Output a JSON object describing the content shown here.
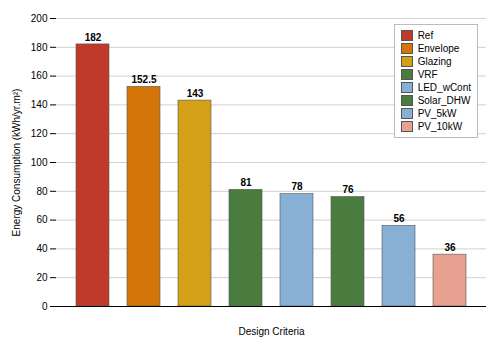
{
  "chart_data": {
    "type": "bar",
    "categories": [
      "Ref",
      "Envelope",
      "Glazing",
      "VRF",
      "LED_wCont",
      "Solar_DHW",
      "PV_5kW",
      "PV_10kW"
    ],
    "values": [
      182,
      152.5,
      143,
      81,
      78,
      76,
      56,
      36
    ],
    "colors": [
      "#c0392b",
      "#d4750a",
      "#d4a017",
      "#4a7c3f",
      "#87b0d4",
      "#4a7c3f",
      "#87b0d4",
      "#e8a090"
    ],
    "xlabel": "Design Criteria",
    "ylabel": "Energy Consumption (kWh/yr.m²)",
    "ylim": [
      0,
      200
    ],
    "yticks": [
      0,
      20,
      40,
      60,
      80,
      100,
      120,
      140,
      160,
      180,
      200
    ],
    "grid": true,
    "legend": "upper right",
    "data_labels": true,
    "tick_labels": "y"
  }
}
